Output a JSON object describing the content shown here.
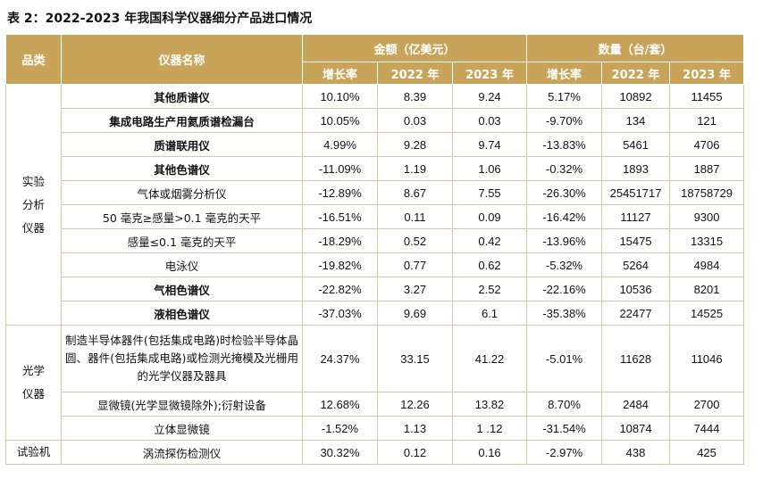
{
  "title": "表 2：2022-2023 年我国科学仪器细分产品进口情况",
  "header": {
    "category": "品类",
    "name": "仪器名称",
    "amount_group": "金额（亿美元）",
    "quantity_group": "数量（台/套）",
    "growth": "增长率",
    "y2022": "2022 年",
    "y2023": "2023 年"
  },
  "groups": [
    {
      "category": "实验分析仪器",
      "rows": [
        {
          "name": "其他质谱仪",
          "bold": true,
          "amt_growth": "10.10%",
          "amt_2022": "8.39",
          "amt_2023": "9.24",
          "qty_growth": "5.17%",
          "qty_2022": "10892",
          "qty_2023": "11455"
        },
        {
          "name": "集成电路生产用氦质谱检漏台",
          "bold": true,
          "amt_growth": "10.05%",
          "amt_2022": "0.03",
          "amt_2023": "0.03",
          "qty_growth": "-9.70%",
          "qty_2022": "134",
          "qty_2023": "121"
        },
        {
          "name": "质谱联用仪",
          "bold": true,
          "amt_growth": "4.99%",
          "amt_2022": "9.28",
          "amt_2023": "9.74",
          "qty_growth": "-13.83%",
          "qty_2022": "5461",
          "qty_2023": "4706"
        },
        {
          "name": "其他色谱仪",
          "bold": true,
          "amt_growth": "-11.09%",
          "amt_2022": "1.19",
          "amt_2023": "1.06",
          "qty_growth": "-0.32%",
          "qty_2022": "1893",
          "qty_2023": "1887"
        },
        {
          "name": "气体或烟雾分析仪",
          "bold": false,
          "amt_growth": "-12.89%",
          "amt_2022": "8.67",
          "amt_2023": "7.55",
          "qty_growth": "-26.30%",
          "qty_2022": "25451717",
          "qty_2023": "18758729"
        },
        {
          "name": "50 毫克≥感量>0.1 毫克的天平",
          "bold": false,
          "amt_growth": "-16.51%",
          "amt_2022": "0.11",
          "amt_2023": "0.09",
          "qty_growth": "-16.42%",
          "qty_2022": "11127",
          "qty_2023": "9300"
        },
        {
          "name": "感量≤0.1 毫克的天平",
          "bold": false,
          "amt_growth": "-18.29%",
          "amt_2022": "0.52",
          "amt_2023": "0.42",
          "qty_growth": "-13.96%",
          "qty_2022": "15475",
          "qty_2023": "13315"
        },
        {
          "name": "电泳仪",
          "bold": false,
          "amt_growth": "-19.82%",
          "amt_2022": "0.77",
          "amt_2023": "0.62",
          "qty_growth": "-5.32%",
          "qty_2022": "5264",
          "qty_2023": "4984"
        },
        {
          "name": "气相色谱仪",
          "bold": true,
          "amt_growth": "-22.82%",
          "amt_2022": "3.27",
          "amt_2023": "2.52",
          "qty_growth": "-22.16%",
          "qty_2022": "10536",
          "qty_2023": "8201"
        },
        {
          "name": "液相色谱仪",
          "bold": true,
          "amt_growth": "-37.03%",
          "amt_2022": "9.69",
          "amt_2023": "6.1",
          "qty_growth": "-35.38%",
          "qty_2022": "22477",
          "qty_2023": "14525"
        }
      ]
    },
    {
      "category": "光学仪器",
      "rows": [
        {
          "name": "制造半导体器件(包括集成电路)时检验半导体晶圆、器件(包括集成电路)或检测光掩模及光栅用的光学仪器及器具",
          "bold": false,
          "multi": true,
          "amt_growth": "24.37%",
          "amt_2022": "33.15",
          "amt_2023": "41.22",
          "qty_growth": "-5.01%",
          "qty_2022": "11628",
          "qty_2023": "11046"
        },
        {
          "name": "显微镜(光学显微镜除外);衍射设备",
          "bold": false,
          "amt_growth": "12.68%",
          "amt_2022": "12.26",
          "amt_2023": "13.82",
          "qty_growth": "8.70%",
          "qty_2022": "2484",
          "qty_2023": "2700"
        },
        {
          "name": "立体显微镜",
          "bold": false,
          "amt_growth": "-1.52%",
          "amt_2022": "1.13",
          "amt_2023": "1 .12",
          "qty_growth": "-31.54%",
          "qty_2022": "10874",
          "qty_2023": "7444"
        }
      ]
    },
    {
      "category": "试验机",
      "rows": [
        {
          "name": "涡流探伤检测仪",
          "bold": false,
          "amt_growth": "30.32%",
          "amt_2022": "0.12",
          "amt_2023": "0.16",
          "qty_growth": "-2.97%",
          "qty_2022": "438",
          "qty_2023": "425"
        }
      ]
    }
  ],
  "colors": {
    "header_bg": "#c8a45a",
    "header_text": "#ffffff",
    "grid": "#d6c7a6"
  }
}
